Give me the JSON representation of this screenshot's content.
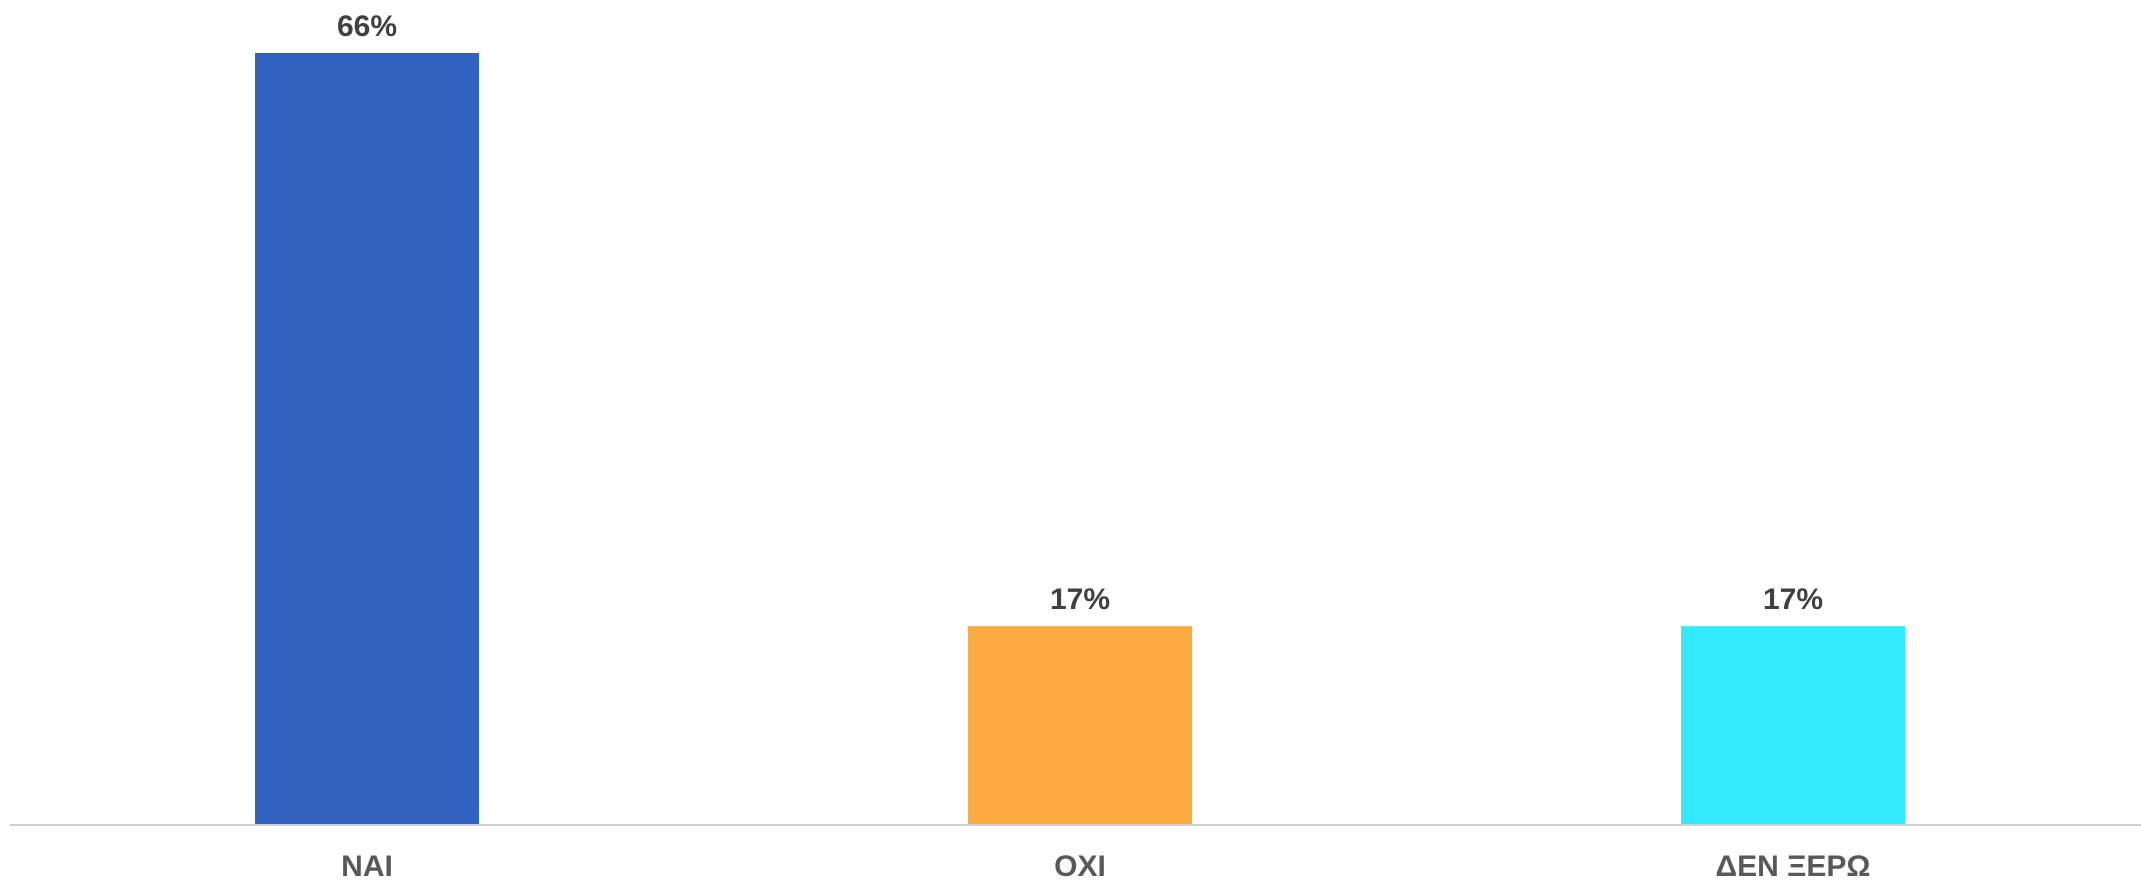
{
  "chart_data": {
    "type": "bar",
    "categories": [
      "NAI",
      "OXI",
      "ΔΕΝ ΞΕΡΩ"
    ],
    "values": [
      66,
      17,
      17
    ],
    "value_labels": [
      "66%",
      "17%",
      "17%"
    ],
    "colors": [
      "#3162C0",
      "#FDAA42",
      "#33EAFD"
    ],
    "title": "",
    "xlabel": "",
    "ylabel": "",
    "ylim": [
      0,
      66
    ],
    "grid": false,
    "legend": "none"
  }
}
